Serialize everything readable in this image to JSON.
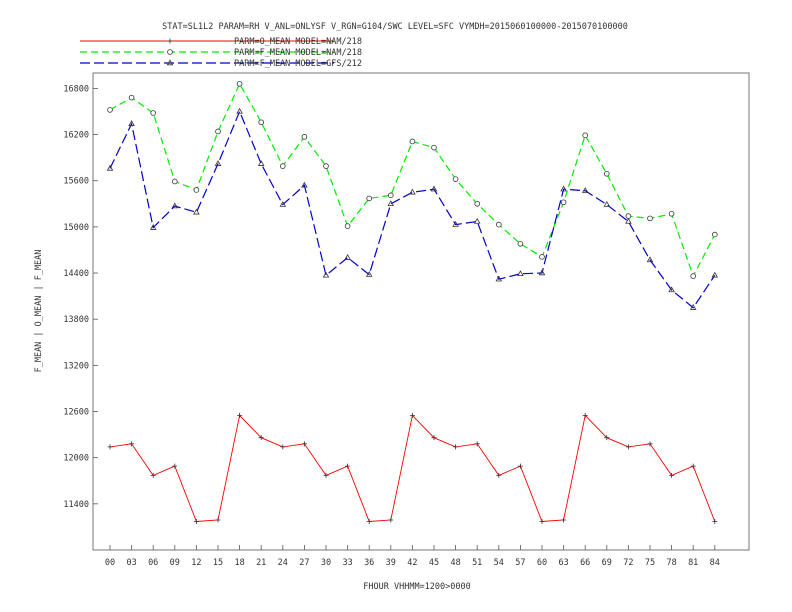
{
  "chart_data": {
    "type": "line",
    "title": "STAT=SL1L2 PARAM=RH V_ANL=ONLYSF V_RGN=G104/SWC LEVEL=SFC VYMDH=2015060100000-2015070100000",
    "xlabel": "FHOUR VHHMM=1200>0000",
    "ylabel": "F_MEAN | O_MEAN | F_MEAN",
    "ylim": [
      10800,
      17000
    ],
    "yticks": [
      "11400",
      "12000",
      "12600",
      "13200",
      "13800",
      "14400",
      "15000",
      "15600",
      "16200",
      "16800"
    ],
    "categories": [
      "00",
      "03",
      "06",
      "09",
      "12",
      "15",
      "18",
      "21",
      "24",
      "27",
      "30",
      "33",
      "36",
      "39",
      "42",
      "45",
      "48",
      "51",
      "54",
      "57",
      "60",
      "63",
      "66",
      "69",
      "72",
      "75",
      "78",
      "81",
      "84"
    ],
    "legend_position": "top-left",
    "grid": false,
    "series": [
      {
        "name": "PARM=O_MEAN MODEL=NAM/218",
        "color": "#ff0000",
        "dash": "solid",
        "marker": "plus",
        "values": [
          12140,
          12180,
          11770,
          11890,
          11170,
          11190,
          12550,
          12260,
          12140,
          12180,
          11770,
          11890,
          11170,
          11190,
          12550,
          12260,
          12140,
          12180,
          11770,
          11890,
          11170,
          11190,
          12550,
          12260,
          12140,
          12180,
          11770,
          11890,
          11170
        ]
      },
      {
        "name": "PARM=F_MEAN MODEL=NAM/218",
        "color": "#00ee00",
        "dash": "dashed",
        "marker": "circle",
        "values": [
          16520,
          16680,
          16480,
          15590,
          15480,
          16240,
          16860,
          16360,
          15790,
          16170,
          15790,
          15010,
          15370,
          15410,
          16110,
          16030,
          15620,
          15300,
          15030,
          14780,
          14610,
          15320,
          16190,
          15690,
          15140,
          15110,
          15170,
          14360,
          14900
        ]
      },
      {
        "name": "PARM=F_MEAN MODEL=GFS/212",
        "color": "#0000cc",
        "dash": "dashed",
        "marker": "triangle",
        "values": [
          15760,
          16340,
          14990,
          15270,
          15190,
          15820,
          16500,
          15820,
          15290,
          15540,
          14370,
          14600,
          14380,
          15300,
          15450,
          15490,
          15030,
          15070,
          14320,
          14390,
          14400,
          15490,
          15470,
          15290,
          15070,
          14570,
          14180,
          13950,
          14370
        ]
      }
    ]
  }
}
